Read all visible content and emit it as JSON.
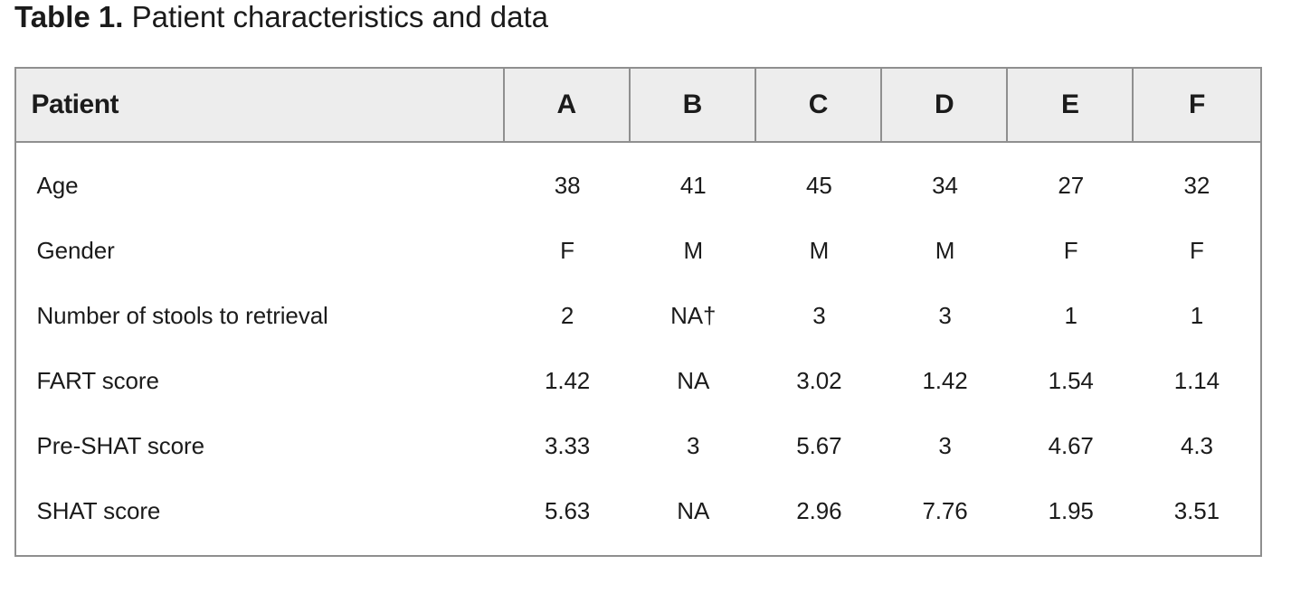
{
  "caption": {
    "label": "Table 1.",
    "text": "Patient characteristics and data"
  },
  "colors": {
    "header_bg": "#ededed",
    "border": "#8f8f8f",
    "text": "#1b1b1b"
  },
  "table": {
    "header": {
      "row_label": "Patient",
      "columns": [
        "A",
        "B",
        "C",
        "D",
        "E",
        "F"
      ]
    },
    "rows": [
      {
        "label": "Age",
        "values": [
          "38",
          "41",
          "45",
          "34",
          "27",
          "32"
        ]
      },
      {
        "label": "Gender",
        "values": [
          "F",
          "M",
          "M",
          "M",
          "F",
          "F"
        ]
      },
      {
        "label": "Number of stools to retrieval",
        "values": [
          "2",
          "NA†",
          "3",
          "3",
          "1",
          "1"
        ]
      },
      {
        "label": "FART score",
        "values": [
          "1.42",
          "NA",
          "3.02",
          "1.42",
          "1.54",
          "1.14"
        ]
      },
      {
        "label": "Pre-SHAT score",
        "values": [
          "3.33",
          "3",
          "5.67",
          "3",
          "4.67",
          "4.3"
        ]
      },
      {
        "label": "SHAT score",
        "values": [
          "5.63",
          "NA",
          "2.96",
          "7.76",
          "1.95",
          "3.51"
        ]
      }
    ]
  }
}
